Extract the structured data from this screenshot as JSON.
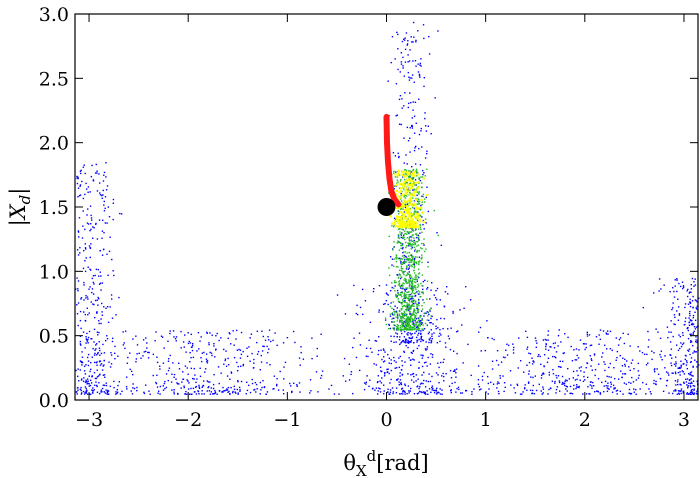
{
  "chart_data": {
    "type": "scatter",
    "title": "",
    "xlabel": {
      "base": "θ",
      "sub": "X",
      "sup": "d",
      "unit": "[rad]"
    },
    "ylabel": {
      "left_bar": "|",
      "base": "X",
      "sub": "d",
      "right_bar": "|"
    },
    "xlim": [
      -3.1416,
      3.1416
    ],
    "ylim": [
      0.0,
      3.0
    ],
    "grid": false,
    "legend": "none",
    "x_ticks": [
      {
        "value": -3,
        "label": "−3"
      },
      {
        "value": -2,
        "label": "−2"
      },
      {
        "value": -1,
        "label": "−1"
      },
      {
        "value": 0,
        "label": "0"
      },
      {
        "value": 1,
        "label": "1"
      },
      {
        "value": 2,
        "label": "2"
      },
      {
        "value": 3,
        "label": "3"
      }
    ],
    "y_ticks": [
      {
        "value": 0.0,
        "label": "0.0"
      },
      {
        "value": 0.5,
        "label": "0.5"
      },
      {
        "value": 1.0,
        "label": "1.0"
      },
      {
        "value": 1.5,
        "label": "1.5"
      },
      {
        "value": 2.0,
        "label": "2.0"
      },
      {
        "value": 2.5,
        "label": "2.5"
      },
      {
        "value": 3.0,
        "label": "3.0"
      }
    ],
    "series": [
      {
        "color": "#0000ff",
        "clusters": [
          {
            "x_center": 0.25,
            "x_spread": 0.18,
            "y_min": 0.45,
            "y_max": 2.95
          },
          {
            "x_center": 0.2,
            "x_spread": 0.55,
            "y_min": 0.05,
            "y_max": 0.9
          },
          {
            "x_center": -3.0,
            "x_spread": 0.25,
            "y_min": 0.05,
            "y_max": 1.85
          },
          {
            "x_center": 3.1,
            "x_spread": 0.25,
            "y_min": 0.05,
            "y_max": 0.95
          },
          {
            "x_center": -1.8,
            "x_spread": 1.0,
            "y_min": 0.05,
            "y_max": 0.55
          },
          {
            "x_center": 1.9,
            "x_spread": 1.0,
            "y_min": 0.05,
            "y_max": 0.55
          }
        ]
      },
      {
        "color": "#22bb22",
        "clusters": [
          {
            "x_center": 0.22,
            "x_spread": 0.14,
            "y_min": 0.55,
            "y_max": 1.8
          }
        ]
      },
      {
        "color": "#ffff00",
        "clusters": [
          {
            "x_center": 0.2,
            "x_spread": 0.13,
            "y_min": 1.35,
            "y_max": 1.8
          }
        ]
      },
      {
        "color": "#ff1a1a",
        "type": "line",
        "x": [
          0.0,
          0.005,
          0.015,
          0.03,
          0.05,
          0.08,
          0.12
        ],
        "y": [
          2.2,
          2.0,
          1.85,
          1.72,
          1.62,
          1.56,
          1.52
        ]
      }
    ],
    "marker": {
      "color": "#000000",
      "x": 0.0,
      "y": 1.5
    }
  }
}
